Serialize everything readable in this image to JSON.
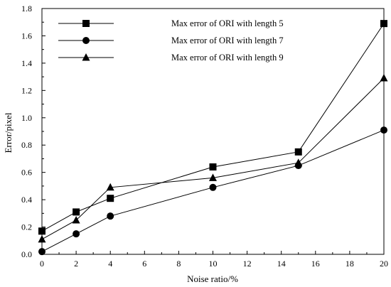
{
  "chart_data": {
    "type": "line",
    "xlabel": "Noise ratio/%",
    "ylabel": "Error/pixel",
    "xlim": [
      0,
      20
    ],
    "ylim": [
      0,
      1.8
    ],
    "xticks": [
      "0",
      "2",
      "4",
      "6",
      "8",
      "10",
      "12",
      "14",
      "16",
      "18",
      "20"
    ],
    "yticks": [
      "0.0",
      "0.2",
      "0.4",
      "0.6",
      "0.8",
      "1.0",
      "1.2",
      "1.4",
      "1.6",
      "1.8"
    ],
    "grid": false,
    "legend_position": "top-left",
    "x": [
      0,
      2,
      4,
      10,
      15,
      20
    ],
    "series": [
      {
        "name": "Max error of ORI with length 5",
        "marker": "square",
        "values": [
          0.17,
          0.31,
          0.41,
          0.64,
          0.75,
          1.69
        ]
      },
      {
        "name": "Max error of ORI with length 7",
        "marker": "circle",
        "values": [
          0.02,
          0.15,
          0.28,
          0.49,
          0.65,
          0.91
        ]
      },
      {
        "name": "Max error of ORI with length 9",
        "marker": "triangle",
        "values": [
          0.11,
          0.25,
          0.49,
          0.56,
          0.67,
          1.29
        ]
      }
    ]
  }
}
